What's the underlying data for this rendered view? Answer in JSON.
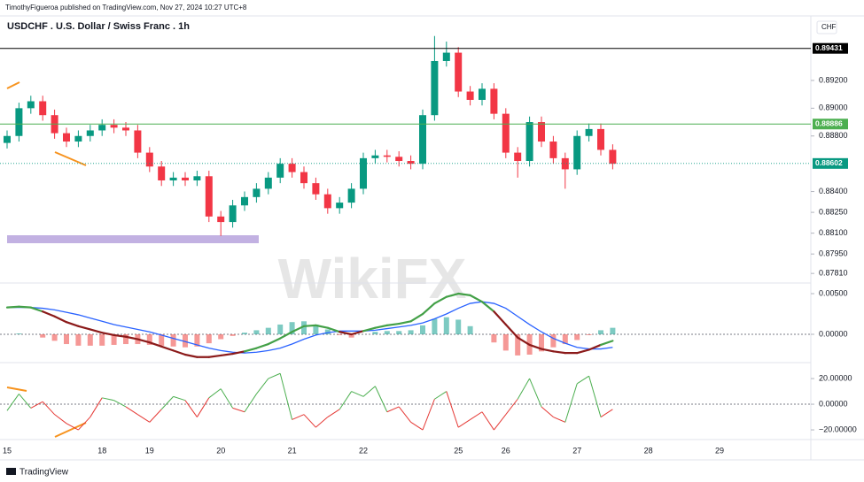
{
  "header": {
    "publisher": "TimothyFigueroa published on TradingView.com, Nov 27, 2024 10:27 UTC+8",
    "footer": "TradingView",
    "watermark": "WikiFX"
  },
  "chart_data": [
    {
      "type": "candlestick",
      "title": "USDCHF . U.S. Dollar / Swiss Franc . 1h",
      "currency": "CHF",
      "up_color": "#089981",
      "down_color": "#f23645",
      "categories": [
        "15",
        null,
        null,
        null,
        null,
        null,
        null,
        null,
        "18",
        null,
        null,
        null,
        "19",
        null,
        null,
        null,
        null,
        null,
        "20",
        null,
        null,
        null,
        null,
        null,
        "21",
        null,
        null,
        null,
        null,
        null,
        "22",
        null,
        null,
        null,
        null,
        null,
        null,
        null,
        "25",
        null,
        null,
        null,
        "26",
        null,
        null,
        null,
        null,
        null,
        "27",
        null,
        null,
        null,
        null,
        null,
        "28",
        null,
        null,
        null,
        null,
        null,
        "29"
      ],
      "open": [
        0.8875,
        0.888,
        0.89,
        0.8905,
        0.8895,
        0.8882,
        0.8876,
        0.888,
        0.8884,
        0.8888,
        0.8886,
        0.8884,
        0.8868,
        0.8858,
        0.8848,
        0.885,
        0.8848,
        0.8851,
        0.8822,
        0.8818,
        0.883,
        0.8836,
        0.8842,
        0.885,
        0.886,
        0.8854,
        0.8846,
        0.8838,
        0.8828,
        0.8832,
        0.8842,
        0.8864,
        0.8866,
        0.8865,
        0.8862,
        0.886,
        0.8895,
        0.8934,
        0.894,
        0.8912,
        0.8906,
        0.8914,
        0.8896,
        0.8868,
        0.8862,
        0.889,
        0.8876,
        0.8864,
        0.8856,
        0.888,
        0.8885,
        0.887,
        null,
        null,
        null,
        null,
        null,
        null,
        null,
        null,
        null
      ],
      "high": [
        0.8884,
        0.8904,
        0.8909,
        0.8909,
        0.8899,
        0.8886,
        0.8884,
        0.8888,
        0.8892,
        0.8892,
        0.889,
        0.8888,
        0.8872,
        0.8862,
        0.8854,
        0.8854,
        0.8855,
        0.8855,
        0.8826,
        0.8834,
        0.884,
        0.8846,
        0.8854,
        0.8864,
        0.8864,
        0.8858,
        0.885,
        0.8842,
        0.8836,
        0.8846,
        0.8868,
        0.887,
        0.887,
        0.8869,
        0.8866,
        0.8899,
        0.8952,
        0.8948,
        0.8944,
        0.8916,
        0.8918,
        0.8918,
        0.89,
        0.8872,
        0.8894,
        0.8894,
        0.888,
        0.8868,
        0.8884,
        0.8889,
        0.8889,
        0.8874,
        null,
        null,
        null,
        null,
        null,
        null,
        null,
        null,
        null
      ],
      "low": [
        0.8871,
        0.8876,
        0.8896,
        0.8891,
        0.8878,
        0.8872,
        0.8872,
        0.8876,
        0.888,
        0.8882,
        0.888,
        0.8864,
        0.8854,
        0.8844,
        0.8844,
        0.8844,
        0.8844,
        0.8818,
        0.8808,
        0.8814,
        0.8826,
        0.8832,
        0.8838,
        0.8846,
        0.885,
        0.8842,
        0.8834,
        0.8824,
        0.8824,
        0.8828,
        0.8838,
        0.886,
        0.8861,
        0.8858,
        0.8856,
        0.8856,
        0.8891,
        0.893,
        0.8908,
        0.8902,
        0.8902,
        0.8892,
        0.8864,
        0.885,
        0.8858,
        0.8872,
        0.886,
        0.8842,
        0.8852,
        0.8876,
        0.8866,
        0.8856,
        null,
        null,
        null,
        null,
        null,
        null,
        null,
        null,
        null
      ],
      "close": [
        0.888,
        0.89,
        0.8905,
        0.8895,
        0.8882,
        0.8876,
        0.888,
        0.8884,
        0.8888,
        0.8886,
        0.8884,
        0.8868,
        0.8858,
        0.8848,
        0.885,
        0.8848,
        0.8851,
        0.8822,
        0.8818,
        0.883,
        0.8836,
        0.8842,
        0.885,
        0.886,
        0.8854,
        0.8846,
        0.8838,
        0.8828,
        0.8832,
        0.8842,
        0.8864,
        0.8866,
        0.8865,
        0.8862,
        0.886,
        0.8895,
        0.8934,
        0.894,
        0.8912,
        0.8906,
        0.8914,
        0.8896,
        0.8868,
        0.8862,
        0.889,
        0.8876,
        0.8864,
        0.8856,
        0.888,
        0.8885,
        0.887,
        0.886,
        null,
        null,
        null,
        null,
        null,
        null,
        null,
        null,
        null
      ],
      "ylim": [
        0.87741,
        0.89652
      ],
      "yticks": [
        {
          "value": 0.892,
          "label": "0.89200"
        },
        {
          "value": 0.89,
          "label": "0.89000"
        },
        {
          "value": 0.888,
          "label": "0.88800"
        },
        {
          "value": 0.884,
          "label": "0.88400"
        },
        {
          "value": 0.8825,
          "label": "0.88250"
        },
        {
          "value": 0.881,
          "label": "0.88100"
        },
        {
          "value": 0.8795,
          "label": "0.87950"
        },
        {
          "value": 0.8781,
          "label": "0.87810"
        }
      ],
      "price_lines": [
        {
          "value": 0.89431,
          "label": "0.89431",
          "color": "#000000",
          "style": "solid"
        },
        {
          "value": 0.88886,
          "label": "0.88886",
          "color": "#4caf50",
          "style": "solid"
        },
        {
          "value": 0.88602,
          "label": "0.88602",
          "color": "#089981",
          "style": "dotted"
        }
      ]
    },
    {
      "type": "macd",
      "up_color": "#43a047",
      "down_color": "#8b1a1a",
      "series": [
        {
          "color": "#8b1a1a",
          "values": [
            0.0033,
            0.0034,
            0.0033,
            0.0028,
            0.0022,
            0.0015,
            0.001,
            0.0006,
            0.0002,
            -0.0001,
            -0.0003,
            -0.0006,
            -0.001,
            -0.0015,
            -0.002,
            -0.0025,
            -0.0028,
            -0.0028,
            -0.0026,
            -0.0024,
            -0.0021,
            -0.0017,
            -0.0012,
            -0.0005,
            0.0003,
            0.001,
            0.0011,
            0.0008,
            0.0003,
            0.0,
            0.0004,
            0.0008,
            0.0011,
            0.0013,
            0.0016,
            0.0025,
            0.0038,
            0.0046,
            0.005,
            0.0048,
            0.004,
            0.0028,
            0.0012,
            -0.0004,
            -0.0013,
            -0.0018,
            -0.0021,
            -0.0023,
            -0.0023,
            -0.0019,
            -0.0013,
            -0.0008
          ]
        },
        {
          "color": "#2962ff",
          "values": [
            0.0033,
            0.0033,
            0.0033,
            0.0032,
            0.003,
            0.0027,
            0.0024,
            0.002,
            0.0016,
            0.0012,
            0.0009,
            0.0006,
            0.0003,
            -0.0001,
            -0.0005,
            -0.0009,
            -0.0013,
            -0.0017,
            -0.002,
            -0.0022,
            -0.0023,
            -0.0022,
            -0.002,
            -0.0017,
            -0.0012,
            -0.0006,
            -0.0001,
            0.0002,
            0.0004,
            0.0004,
            0.0004,
            0.0005,
            0.0007,
            0.0009,
            0.0011,
            0.0014,
            0.0019,
            0.0025,
            0.0032,
            0.0038,
            0.004,
            0.0038,
            0.0032,
            0.0022,
            0.0012,
            0.0003,
            -0.0005,
            -0.0011,
            -0.0016,
            -0.0018,
            -0.0018,
            -0.0016
          ]
        }
      ],
      "histogram": {
        "up_color": "#26a69a",
        "down_color": "#ef5350",
        "values": [
          0,
          0.0001,
          0,
          -0.0004,
          -0.0008,
          -0.0012,
          -0.0014,
          -0.0014,
          -0.0014,
          -0.0013,
          -0.0012,
          -0.0012,
          -0.0013,
          -0.0014,
          -0.0015,
          -0.0016,
          -0.0015,
          -0.0011,
          -0.0006,
          -0.0002,
          0.0002,
          0.0005,
          0.0008,
          0.0012,
          0.0015,
          0.0016,
          0.0012,
          0.0006,
          -0.0001,
          -0.0004,
          0,
          0.0003,
          0.0004,
          0.0004,
          0.0005,
          0.0011,
          0.0019,
          0.0021,
          0.0018,
          0.001,
          0,
          -0.001,
          -0.002,
          -0.0026,
          -0.0025,
          -0.0021,
          -0.0016,
          -0.0012,
          -0.0007,
          -0.0001,
          0.0005,
          0.0008
        ]
      },
      "ylim": [
        -0.00348,
        0.00609
      ],
      "yticks": [
        {
          "value": 0.005,
          "label": "0.00500"
        },
        {
          "value": 0,
          "label": "0.00000"
        }
      ]
    },
    {
      "type": "oscillator",
      "up_color": "#4caf50",
      "down_color": "#e53935",
      "values": [
        -5,
        8,
        -3,
        2,
        -8,
        -15,
        -20,
        -10,
        5,
        3,
        -2,
        -8,
        -14,
        -4,
        6,
        3,
        -10,
        5,
        12,
        -3,
        -6,
        8,
        20,
        24,
        -12,
        -8,
        -18,
        -10,
        -4,
        10,
        6,
        14,
        -6,
        -2,
        -14,
        -20,
        4,
        10,
        -18,
        -12,
        -6,
        -20,
        -8,
        4,
        20,
        -2,
        -10,
        -14,
        16,
        22,
        -10,
        -4
      ],
      "ylim": [
        -24.1,
        29
      ],
      "yticks": [
        {
          "value": 20,
          "label": "20.00000"
        },
        {
          "value": 0,
          "label": "0.00000"
        },
        {
          "value": -20,
          "label": "−20.00000"
        }
      ]
    }
  ]
}
